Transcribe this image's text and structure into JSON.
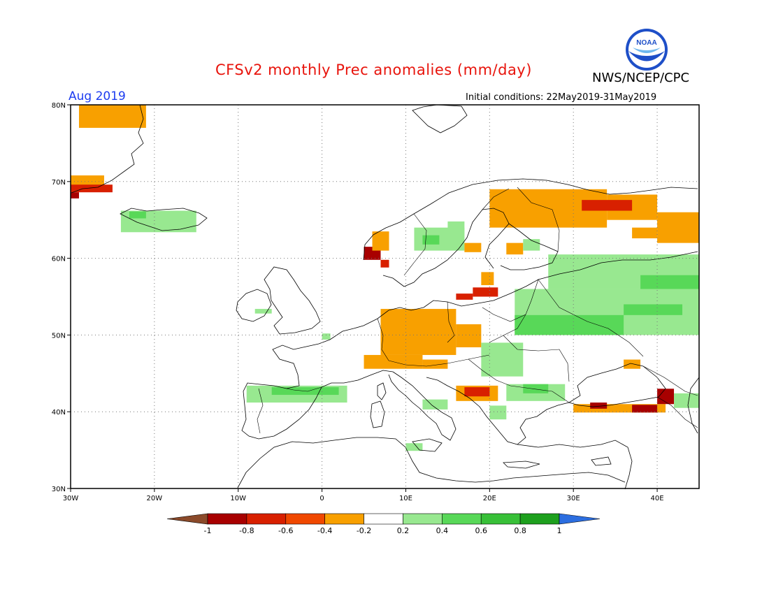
{
  "header": {
    "title": "CFSv2 monthly Prec anomalies (mm/day)",
    "organization": "NWS/NCEP/CPC",
    "logo_text": "NOAA",
    "forecast_month": "Aug 2019",
    "initial_conditions": "Initial conditions: 22May2019-31May2019"
  },
  "map": {
    "lat_labels": [
      "80N",
      "70N",
      "60N",
      "50N",
      "40N",
      "30N"
    ],
    "lon_labels": [
      "30W",
      "20W",
      "10W",
      "0",
      "10E",
      "20E",
      "30E",
      "40E"
    ],
    "lat_range": [
      30,
      80
    ],
    "lon_range": [
      -30,
      45
    ],
    "grid": "dotted",
    "colors": {
      "brown": "#8b4a2a",
      "dark_red": "#a80000",
      "red": "#d82000",
      "orange_red": "#f04800",
      "orange": "#f8a000",
      "light_green": "#98e890",
      "green": "#58d858",
      "mid_green": "#38c038",
      "dark_green": "#1ea01e",
      "blue": "#2c6ee0"
    }
  },
  "colorbar": {
    "labels": [
      "-1",
      "-0.8",
      "-0.6",
      "-0.4",
      "-0.2",
      "0.2",
      "0.4",
      "0.6",
      "0.8",
      "1"
    ],
    "bins": [
      {
        "color": "#a80000"
      },
      {
        "color": "#d82000"
      },
      {
        "color": "#f04800"
      },
      {
        "color": "#f8a000"
      },
      {
        "color": "#ffffff"
      },
      {
        "color": "#98e890"
      },
      {
        "color": "#58d858"
      },
      {
        "color": "#38c038"
      },
      {
        "color": "#1ea01e"
      }
    ],
    "under_color": "#8b4a2a",
    "over_color": "#2c6ee0"
  },
  "anomaly_regions": [
    {
      "cat": "orange",
      "lon": [
        -29,
        -21
      ],
      "lat": [
        77,
        80
      ]
    },
    {
      "cat": "orange",
      "lon": [
        -30,
        -26
      ],
      "lat": [
        69.5,
        70.8
      ]
    },
    {
      "cat": "red",
      "lon": [
        -30,
        -25
      ],
      "lat": [
        68.6,
        69.6
      ]
    },
    {
      "cat": "dark_red",
      "lon": [
        -30,
        -29
      ],
      "lat": [
        67.8,
        68.6
      ]
    },
    {
      "cat": "light_green",
      "lon": [
        -24,
        -15
      ],
      "lat": [
        63.4,
        66.2
      ]
    },
    {
      "cat": "green",
      "lon": [
        -23,
        -21
      ],
      "lat": [
        65.2,
        66.1
      ]
    },
    {
      "cat": "orange",
      "lon": [
        20,
        34
      ],
      "lat": [
        64,
        69
      ]
    },
    {
      "cat": "orange",
      "lon": [
        34,
        40
      ],
      "lat": [
        65,
        68.3
      ]
    },
    {
      "cat": "red",
      "lon": [
        31,
        37
      ],
      "lat": [
        66.2,
        67.6
      ]
    },
    {
      "cat": "orange",
      "lon": [
        40,
        45
      ],
      "lat": [
        62,
        66
      ]
    },
    {
      "cat": "orange",
      "lon": [
        37,
        40
      ],
      "lat": [
        62.6,
        64
      ]
    },
    {
      "cat": "light_green",
      "lon": [
        11,
        17
      ],
      "lat": [
        61,
        64
      ]
    },
    {
      "cat": "green",
      "lon": [
        12,
        14
      ],
      "lat": [
        61.8,
        63
      ]
    },
    {
      "cat": "dark_red",
      "lon": [
        5,
        7
      ],
      "lat": [
        59.8,
        61.5
      ]
    },
    {
      "cat": "orange",
      "lon": [
        6,
        8
      ],
      "lat": [
        61,
        63.5
      ]
    },
    {
      "cat": "red",
      "lon": [
        7,
        8
      ],
      "lat": [
        58.8,
        59.8
      ]
    },
    {
      "cat": "orange",
      "lon": [
        17,
        19
      ],
      "lat": [
        60.8,
        62
      ]
    },
    {
      "cat": "light_green",
      "lon": [
        15,
        17
      ],
      "lat": [
        62.5,
        64.8
      ]
    },
    {
      "cat": "orange",
      "lon": [
        22,
        24
      ],
      "lat": [
        60.5,
        62
      ]
    },
    {
      "cat": "light_green",
      "lon": [
        24,
        26
      ],
      "lat": [
        61,
        62.5
      ]
    },
    {
      "cat": "orange",
      "lon": [
        19,
        20.5
      ],
      "lat": [
        56.5,
        58.2
      ]
    },
    {
      "cat": "red",
      "lon": [
        18,
        21
      ],
      "lat": [
        55,
        56.2
      ]
    },
    {
      "cat": "red",
      "lon": [
        16,
        18
      ],
      "lat": [
        54.6,
        55.4
      ]
    },
    {
      "cat": "light_green",
      "lon": [
        27,
        45
      ],
      "lat": [
        56,
        60.5
      ]
    },
    {
      "cat": "green",
      "lon": [
        38,
        45
      ],
      "lat": [
        55.4,
        57.8
      ]
    },
    {
      "cat": "light_green",
      "lon": [
        23,
        45
      ],
      "lat": [
        50,
        56
      ]
    },
    {
      "cat": "green",
      "lon": [
        23,
        36
      ],
      "lat": [
        50,
        52.6
      ]
    },
    {
      "cat": "green",
      "lon": [
        36,
        43
      ],
      "lat": [
        52.6,
        54
      ]
    },
    {
      "cat": "orange",
      "lon": [
        7,
        16
      ],
      "lat": [
        47.4,
        53.4
      ]
    },
    {
      "cat": "orange",
      "lon": [
        16,
        19
      ],
      "lat": [
        48.4,
        51.4
      ]
    },
    {
      "cat": "orange",
      "lon": [
        5,
        12
      ],
      "lat": [
        45.6,
        47.4
      ]
    },
    {
      "cat": "orange",
      "lon": [
        12,
        15
      ],
      "lat": [
        45.6,
        46.8
      ]
    },
    {
      "cat": "light_green",
      "lon": [
        19,
        24
      ],
      "lat": [
        44.6,
        49
      ]
    },
    {
      "cat": "orange",
      "lon": [
        36,
        38
      ],
      "lat": [
        45.6,
        46.8
      ]
    },
    {
      "cat": "orange",
      "lon": [
        16,
        21
      ],
      "lat": [
        41.4,
        43.4
      ]
    },
    {
      "cat": "red",
      "lon": [
        17,
        20
      ],
      "lat": [
        42,
        43.2
      ]
    },
    {
      "cat": "light_green",
      "lon": [
        22,
        29
      ],
      "lat": [
        41.4,
        43.6
      ]
    },
    {
      "cat": "green",
      "lon": [
        24,
        27
      ],
      "lat": [
        42.4,
        43.6
      ]
    },
    {
      "cat": "light_green",
      "lon": [
        20,
        22
      ],
      "lat": [
        39,
        40.8
      ]
    },
    {
      "cat": "light_green",
      "lon": [
        -9,
        3
      ],
      "lat": [
        41.2,
        43.4
      ]
    },
    {
      "cat": "green",
      "lon": [
        -6,
        2
      ],
      "lat": [
        42.2,
        43.2
      ]
    },
    {
      "cat": "light_green",
      "lon": [
        12,
        15
      ],
      "lat": [
        40.3,
        41.6
      ]
    },
    {
      "cat": "light_green",
      "lon": [
        10,
        12
      ],
      "lat": [
        34.9,
        35.9
      ]
    },
    {
      "cat": "orange",
      "lon": [
        30,
        41
      ],
      "lat": [
        39.9,
        41
      ]
    },
    {
      "cat": "dark_red",
      "lon": [
        32,
        34
      ],
      "lat": [
        40.4,
        41.2
      ]
    },
    {
      "cat": "dark_red",
      "lon": [
        37,
        40
      ],
      "lat": [
        39.9,
        40.9
      ]
    },
    {
      "cat": "dark_red",
      "lon": [
        40,
        42
      ],
      "lat": [
        41,
        43
      ]
    },
    {
      "cat": "light_green",
      "lon": [
        42,
        45
      ],
      "lat": [
        40.5,
        42.4
      ]
    },
    {
      "cat": "light_green",
      "lon": [
        0,
        1
      ],
      "lat": [
        49.4,
        50.2
      ]
    },
    {
      "cat": "light_green",
      "lon": [
        -8,
        -6
      ],
      "lat": [
        52.8,
        53.4
      ]
    }
  ]
}
